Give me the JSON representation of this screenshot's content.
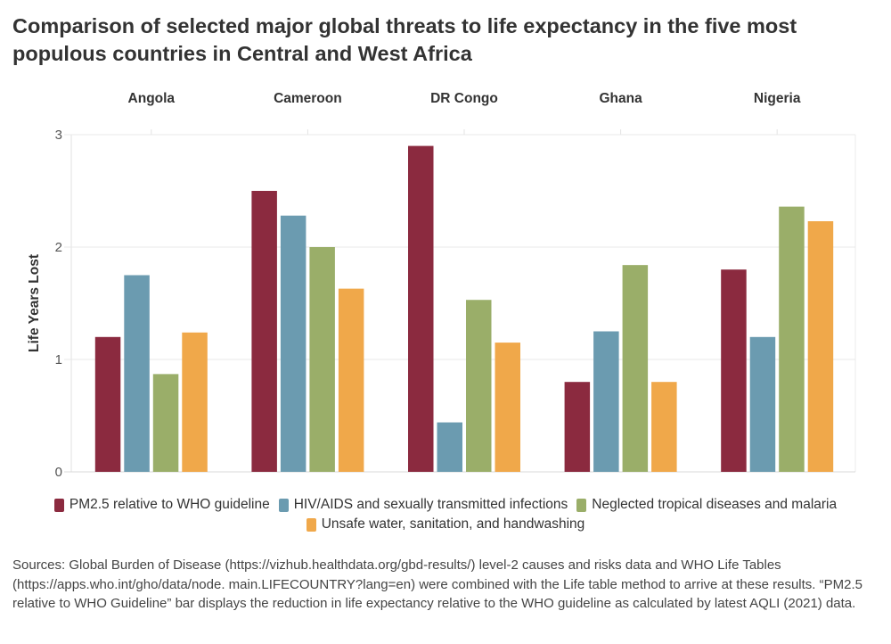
{
  "chart_data": {
    "type": "bar",
    "title": "Comparison of selected major global threats to life expectancy in the five most populous countries in Central and West Africa",
    "xlabel": "",
    "ylabel": "Life Years Lost",
    "ylim": [
      0,
      3
    ],
    "yticks": [
      0,
      1,
      2,
      3
    ],
    "grid": true,
    "legend_position": "bottom",
    "categories": [
      "Angola",
      "Cameroon",
      "DR Congo",
      "Ghana",
      "Nigeria"
    ],
    "series": [
      {
        "name": "PM2.5 relative to WHO guideline",
        "color": "#8B2A3F",
        "values": [
          1.2,
          2.5,
          2.9,
          0.8,
          1.8
        ]
      },
      {
        "name": "HIV/AIDS and sexually transmitted infections",
        "color": "#6B9BB0",
        "values": [
          1.75,
          2.28,
          0.44,
          1.25,
          1.2
        ]
      },
      {
        "name": "Neglected tropical diseases and malaria",
        "color": "#9AAE69",
        "values": [
          0.87,
          2.0,
          1.53,
          1.84,
          2.36
        ]
      },
      {
        "name": "Unsafe water, sanitation, and handwashing",
        "color": "#F0A84A",
        "values": [
          1.24,
          1.63,
          1.15,
          0.8,
          2.23
        ]
      }
    ]
  },
  "sources": "Sources: Global Burden of Disease (https://vizhub.healthdata.org/gbd-results/) level-2 causes and risks data and WHO Life Tables (https://apps.who.int/gho/data/node. main.LIFECOUNTRY?lang=en) were combined with the Life table method to arrive at these results. “PM2.5 relative to WHO Guideline” bar displays the reduction in life expectancy relative to the WHO guideline as calculated by latest AQLI (2021) data."
}
